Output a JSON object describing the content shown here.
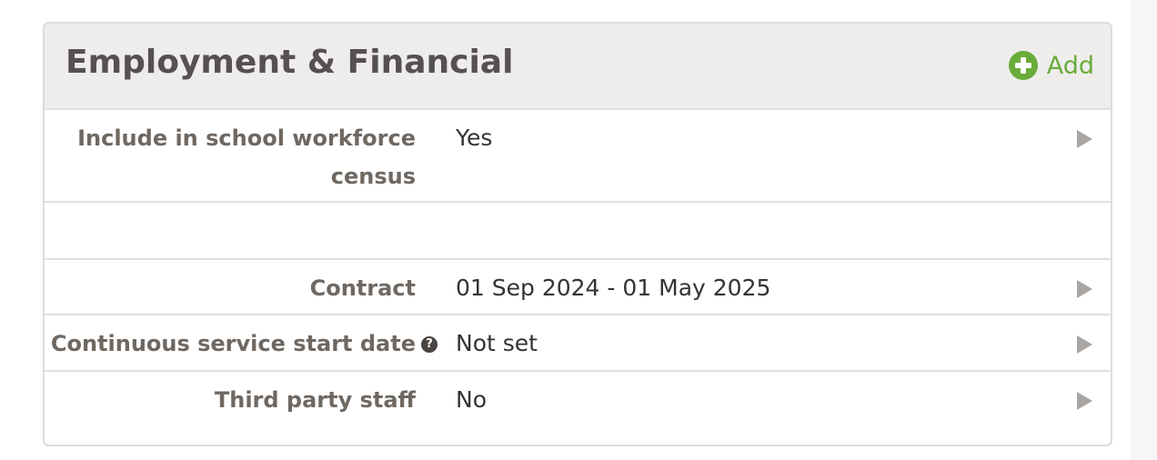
{
  "panel": {
    "title": "Employment & Financial",
    "add_label": "Add",
    "accent_color": "#6aac3a",
    "rows": [
      {
        "label": "Include in school workforce census",
        "value": "Yes"
      },
      {
        "label": "",
        "value": ""
      },
      {
        "label": "Contract",
        "value": "01 Sep 2024 - 01 May 2025"
      },
      {
        "label": "Continuous service start date",
        "value": "Not set",
        "help_icon": "?"
      },
      {
        "label": "Third party staff",
        "value": "No"
      }
    ]
  }
}
